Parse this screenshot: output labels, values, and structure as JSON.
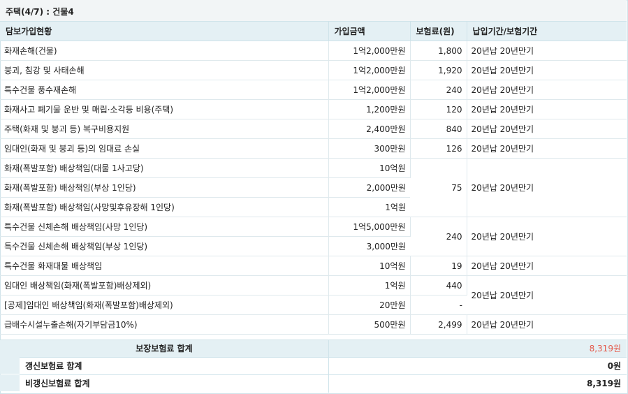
{
  "section_title": "주택(4/7) : 건물4",
  "columns": {
    "coverage": "담보가입현황",
    "amount": "가입금액",
    "premium": "보험료(원)",
    "period": "납입기간/보험기간"
  },
  "rows": [
    {
      "name": "화재손해(건물)",
      "amount": "1억2,000만원",
      "premium": "1,800",
      "period": "20년납 20년만기"
    },
    {
      "name": "붕괴, 침강 및 사태손해",
      "amount": "1억2,000만원",
      "premium": "1,920",
      "period": "20년납 20년만기"
    },
    {
      "name": "특수건물 풍수재손해",
      "amount": "1억2,000만원",
      "premium": "240",
      "period": "20년납 20년만기"
    },
    {
      "name": "화재사고 폐기물 운반 및 매립·소각등 비용(주택)",
      "amount": "1,200만원",
      "premium": "120",
      "period": "20년납 20년만기"
    },
    {
      "name": "주택(화재 및 붕괴 등) 복구비용지원",
      "amount": "2,400만원",
      "premium": "840",
      "period": "20년납 20년만기"
    },
    {
      "name": "임대인(화재 및 붕괴 등)의 임대료 손실",
      "amount": "300만원",
      "premium": "126",
      "period": "20년납 20년만기"
    },
    {
      "name": "화재(폭발포함) 배상책임(대물 1사고당)",
      "amount": "10억원"
    },
    {
      "name": "화재(폭발포함) 배상책임(부상 1인당)",
      "amount": "2,000만원"
    },
    {
      "name": "화재(폭발포함) 배상책임(사망및후유장해 1인당)",
      "amount": "1억원"
    },
    {
      "name": "특수건물 신체손해 배상책임(사망 1인당)",
      "amount": "1억5,000만원"
    },
    {
      "name": "특수건물 신체손해 배상책임(부상 1인당)",
      "amount": "3,000만원"
    },
    {
      "name": "특수건물 화재대물 배상책임",
      "amount": "10억원",
      "premium": "19",
      "period": "20년납 20년만기"
    },
    {
      "name": "임대인 배상책임(화재(폭발포함)배상제외)",
      "amount": "1억원",
      "premium": "440"
    },
    {
      "name": "[공제]임대인 배상책임(화재(폭발포함)배상제외)",
      "amount": "20만원",
      "premium": "-"
    },
    {
      "name": "급배수시설누출손해(자기부담금10%)",
      "amount": "500만원",
      "premium": "2,499",
      "period": "20년납 20년만기"
    }
  ],
  "merged": {
    "fire_liability": {
      "premium": "75",
      "period": "20년납 20년만기"
    },
    "special_bodily": {
      "premium": "240",
      "period": "20년납 20년만기"
    },
    "landlord": {
      "period": "20년납 20년만기"
    }
  },
  "summary": {
    "total_label": "보장보험료 합계",
    "total_value": "8,319원",
    "renewal_label": "갱신보험료 합계",
    "renewal_value": "0원",
    "nonrenewal_label": "비갱신보험료 합계",
    "nonrenewal_value": "8,319원"
  },
  "colors": {
    "header_bg": "#e4f0f4",
    "title_bg": "#f2f5f6",
    "border": "#cfe3ea",
    "total_value": "#e45a4c"
  }
}
